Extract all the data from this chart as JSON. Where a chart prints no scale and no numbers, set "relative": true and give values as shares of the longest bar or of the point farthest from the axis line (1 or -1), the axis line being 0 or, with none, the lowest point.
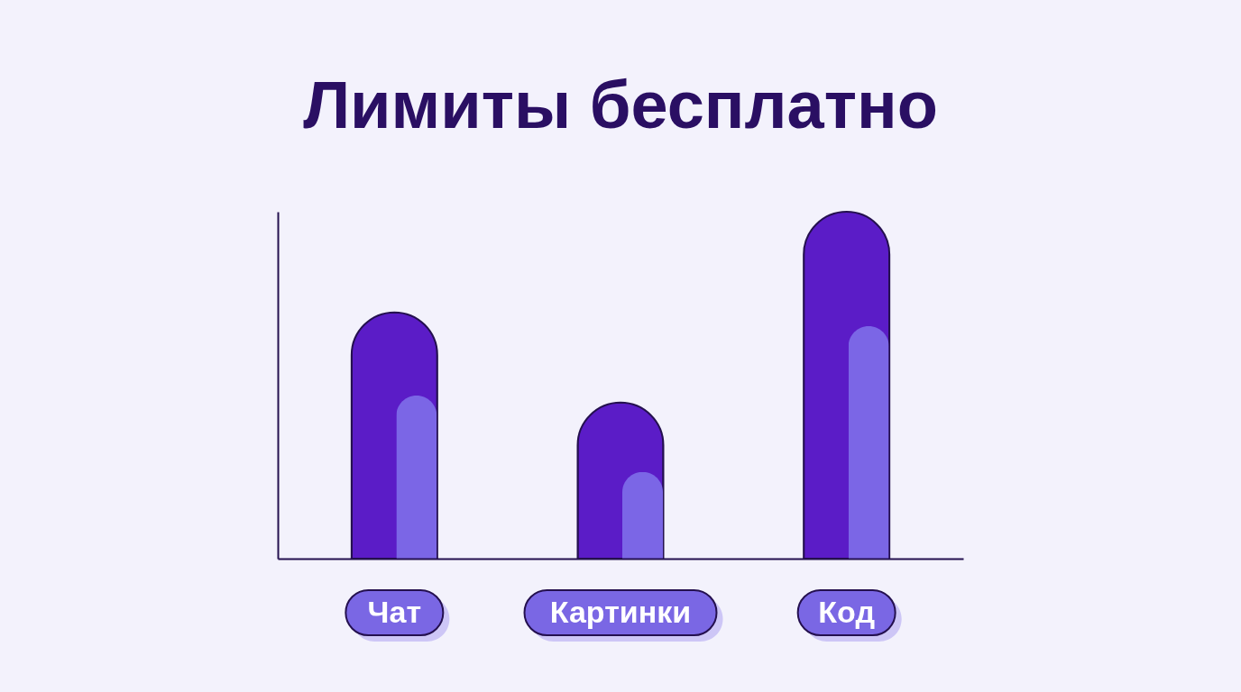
{
  "chart_data": {
    "type": "bar",
    "title": "Лимиты бесплатно",
    "categories": [
      "Чат",
      "Картинки",
      "Код"
    ],
    "relative": true,
    "grid": false,
    "series": [
      {
        "color": "#5b1cc7",
        "values": [
          0.71,
          0.45,
          1
        ]
      },
      {
        "color": "#7b66e6",
        "values": [
          0.47,
          0.25,
          0.67
        ]
      }
    ]
  }
}
